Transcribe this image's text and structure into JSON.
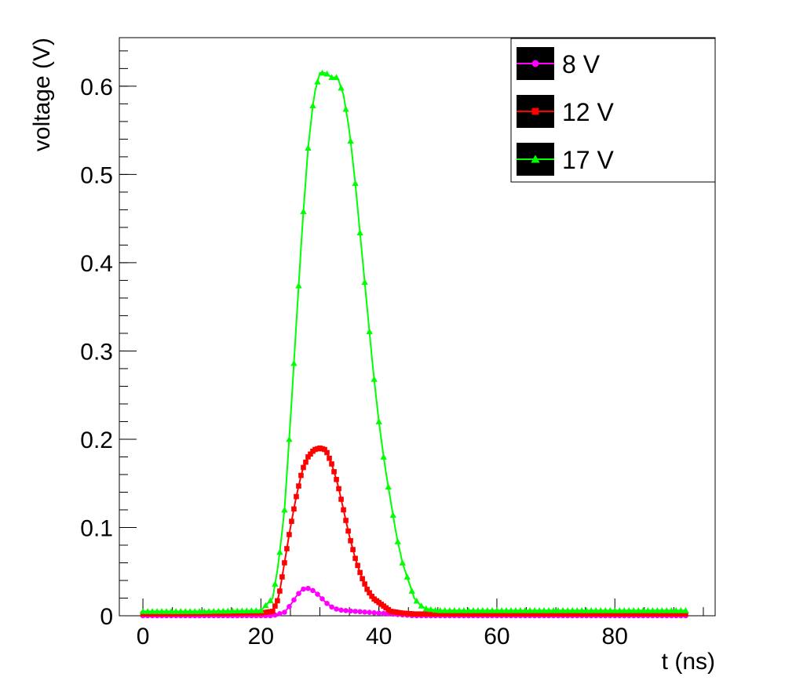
{
  "chart_data": {
    "type": "line",
    "title": "",
    "xlabel": "t (ns)",
    "ylabel": "voltage (V)",
    "xlim": [
      -4,
      97
    ],
    "ylim": [
      0,
      0.655
    ],
    "x_ticks": [
      0,
      20,
      40,
      60,
      80
    ],
    "x_tick_labels": [
      "0",
      "20",
      "40",
      "60",
      "80"
    ],
    "y_ticks": [
      0,
      0.1,
      0.2,
      0.3,
      0.4,
      0.5,
      0.6
    ],
    "y_tick_labels": [
      "0",
      "0.1",
      "0.2",
      "0.3",
      "0.4",
      "0.5",
      "0.6"
    ],
    "grid": false,
    "legend_position": "top-right",
    "series": [
      {
        "name": "8 V",
        "color": "#ff00ff",
        "marker": "circle",
        "x": [
          0,
          22,
          24,
          25,
          26,
          27,
          28,
          29,
          30,
          31,
          32,
          33,
          34,
          36,
          38,
          40,
          42,
          44,
          46,
          50,
          60,
          70,
          80,
          92
        ],
        "y": [
          0.0,
          0.0,
          0.004,
          0.012,
          0.022,
          0.03,
          0.031,
          0.028,
          0.022,
          0.015,
          0.01,
          0.007,
          0.006,
          0.005,
          0.004,
          0.003,
          0.002,
          0.001,
          0.0,
          0.0,
          0.0,
          0.0,
          0.0,
          0.0
        ]
      },
      {
        "name": "12 V",
        "color": "#ff0000",
        "marker": "square",
        "x": [
          0,
          20,
          22,
          23,
          24,
          25,
          26,
          27,
          28,
          29,
          30,
          31,
          32,
          33,
          34,
          35,
          36,
          37,
          38,
          39,
          40,
          41,
          42,
          44,
          46,
          50,
          60,
          70,
          80,
          92
        ],
        "y": [
          0.002,
          0.003,
          0.005,
          0.02,
          0.06,
          0.1,
          0.135,
          0.165,
          0.18,
          0.188,
          0.19,
          0.188,
          0.172,
          0.15,
          0.12,
          0.09,
          0.065,
          0.045,
          0.03,
          0.02,
          0.015,
          0.01,
          0.005,
          0.003,
          0.002,
          0.002,
          0.002,
          0.002,
          0.002,
          0.002
        ]
      },
      {
        "name": "17 V",
        "color": "#00ff00",
        "marker": "triangle",
        "x": [
          0,
          10,
          20,
          22,
          23,
          24,
          25,
          26,
          27,
          28,
          29,
          30,
          31,
          32,
          33,
          34,
          35,
          36,
          37,
          38,
          39,
          40,
          41,
          42,
          43,
          44,
          45,
          46,
          47,
          48,
          50,
          60,
          70,
          80,
          92
        ],
        "y": [
          0.005,
          0.005,
          0.006,
          0.02,
          0.06,
          0.12,
          0.22,
          0.33,
          0.44,
          0.53,
          0.59,
          0.615,
          0.615,
          0.61,
          0.61,
          0.59,
          0.55,
          0.49,
          0.42,
          0.35,
          0.28,
          0.22,
          0.17,
          0.13,
          0.09,
          0.06,
          0.04,
          0.02,
          0.012,
          0.008,
          0.006,
          0.006,
          0.006,
          0.006,
          0.006
        ]
      }
    ]
  }
}
